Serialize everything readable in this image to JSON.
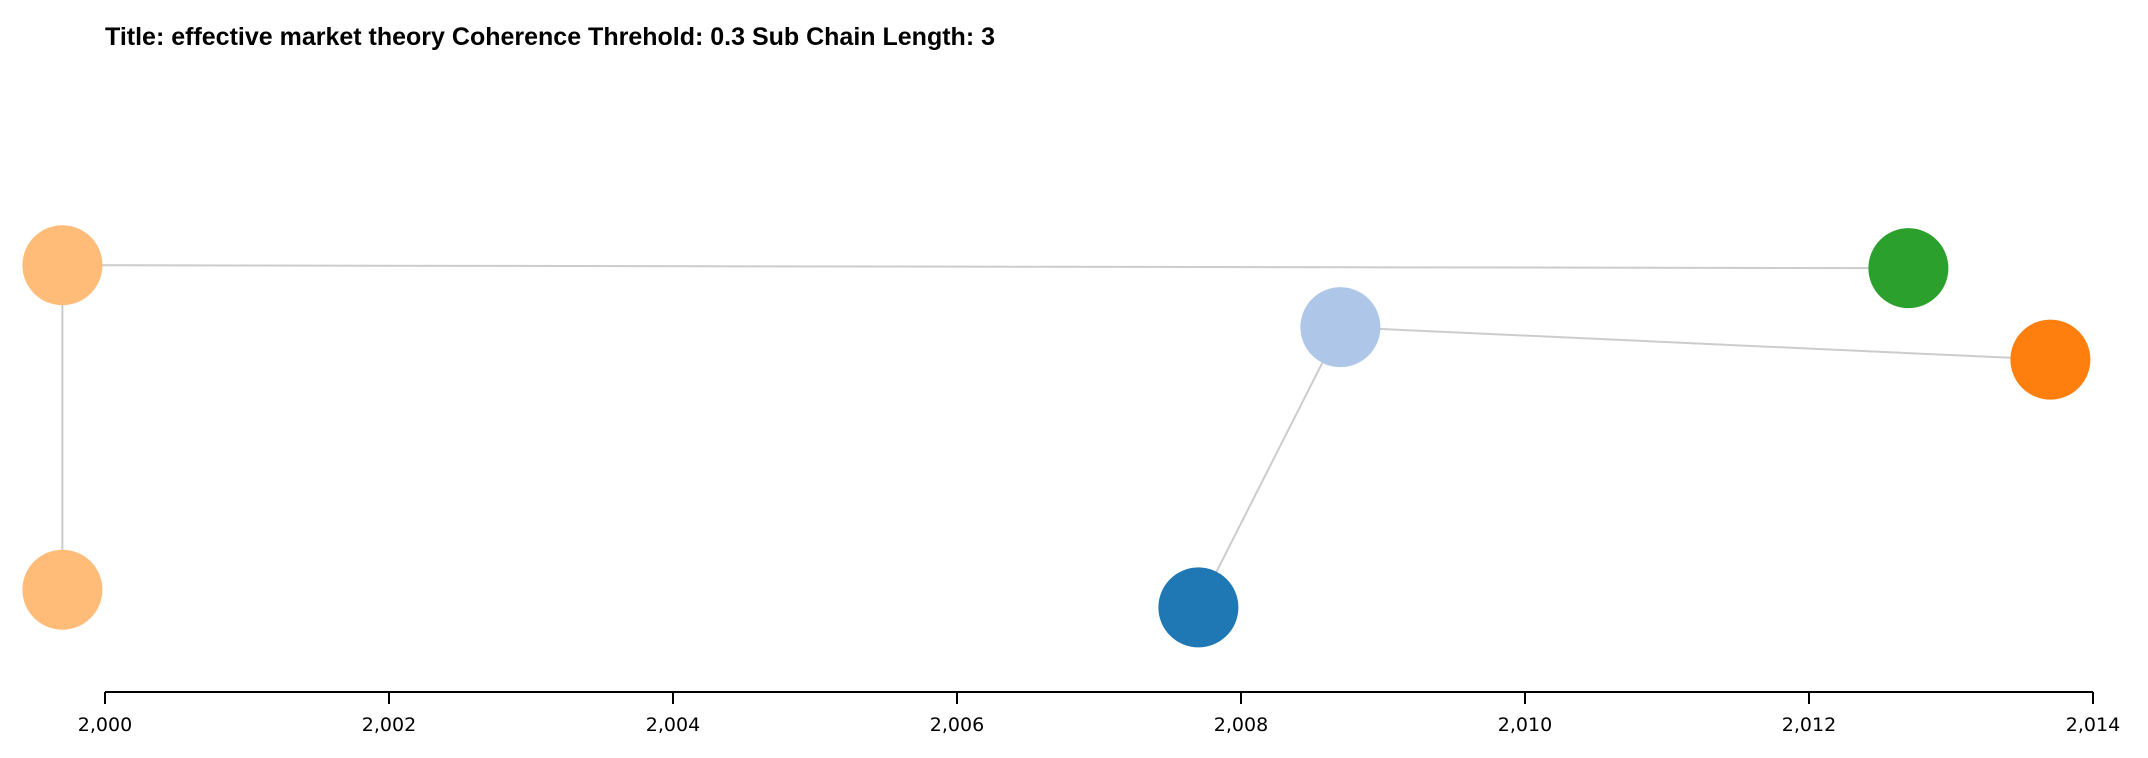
{
  "chart_data": {
    "type": "scatter",
    "title": "Title: effective market theory Coherence Threhold: 0.3 Sub Chain Length: 3",
    "xlabel": "",
    "ylabel": "",
    "xlim": [
      2000,
      2014
    ],
    "ylim": [
      0,
      1
    ],
    "x_ticks": [
      2000,
      2002,
      2004,
      2006,
      2008,
      2010,
      2012,
      2014
    ],
    "x_tick_labels": [
      "2,000",
      "2,002",
      "2,004",
      "2,006",
      "2,008",
      "2,010",
      "2,012",
      "2,014"
    ],
    "grid": false,
    "nodes": [
      {
        "id": "n1",
        "x": 1999.7,
        "y": 0.72,
        "color": "#ffbb78"
      },
      {
        "id": "n2",
        "x": 1999.7,
        "y": 0.17,
        "color": "#ffbb78"
      },
      {
        "id": "n3",
        "x": 2012.7,
        "y": 0.715,
        "color": "#2ca02c"
      },
      {
        "id": "n4",
        "x": 2008.7,
        "y": 0.615,
        "color": "#aec7e8"
      },
      {
        "id": "n5",
        "x": 2013.7,
        "y": 0.56,
        "color": "#ff7f0e"
      },
      {
        "id": "n6",
        "x": 2007.7,
        "y": 0.14,
        "color": "#1f77b4"
      }
    ],
    "links": [
      {
        "source": "n1",
        "target": "n3"
      },
      {
        "source": "n1",
        "target": "n2"
      },
      {
        "source": "n4",
        "target": "n5"
      },
      {
        "source": "n4",
        "target": "n6"
      }
    ]
  }
}
